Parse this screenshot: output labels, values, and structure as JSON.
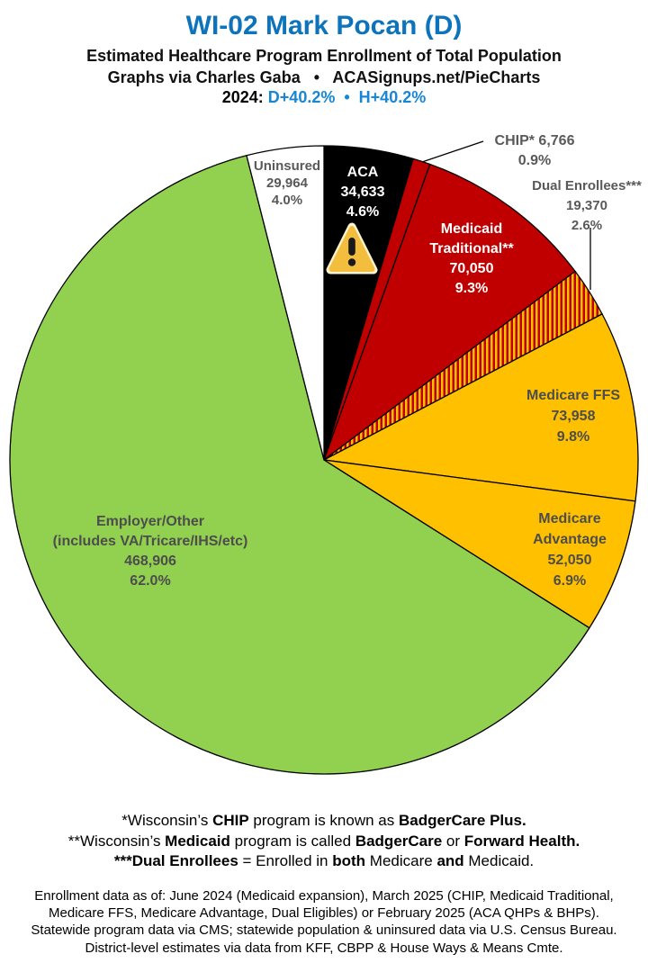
{
  "header": {
    "title": "WI-02 Mark Pocan (D)",
    "subtitle": "Estimated Healthcare Program Enrollment of Total Population",
    "credit": "Graphs via Charles Gaba   •   ACASignups.net/PieCharts",
    "partisan_segments": [
      {
        "t": "2024: ",
        "c": "#000000"
      },
      {
        "t": "D+40.2%",
        "c": "#1787D5"
      },
      {
        "t": "  •  ",
        "c": "#1787D5"
      },
      {
        "t": "H+40.2%",
        "c": "#1787D5"
      }
    ]
  },
  "colors": {
    "title_blue": "#0D74BC",
    "stat_blue": "#1787D5",
    "red": "#C00000",
    "gold": "#FFC000",
    "green": "#92D050",
    "black": "#000000",
    "white": "#FFFFFF",
    "gray_label": "#595959",
    "dark_gray_label": "#4D4D4D",
    "warning_triangle": "#F3BE3E"
  },
  "chart_data": {
    "type": "pie",
    "title": "Estimated Healthcare Program Enrollment of Total Population",
    "start_angle": "12 o'clock, clockwise",
    "slices": [
      {
        "key": "aca",
        "name": "ACA",
        "value": 34633,
        "display": "34,633",
        "pct": "4.6%",
        "color": "#000000",
        "icon": "warning-triangle-icon"
      },
      {
        "key": "chip",
        "name": "CHIP*",
        "value": 6766,
        "display": "6,766",
        "pct": "0.9%",
        "color": "#C00000"
      },
      {
        "key": "medicaid",
        "name": "Medicaid Traditional**",
        "value": 70050,
        "display": "70,050",
        "pct": "9.3%",
        "color": "#C00000"
      },
      {
        "key": "dual",
        "name": "Dual Enrollees***",
        "value": 19370,
        "display": "19,370",
        "pct": "2.6%",
        "color": "#C00000",
        "hatch": true,
        "hatch_color": "#FFC000"
      },
      {
        "key": "ffs",
        "name": "Medicare FFS",
        "value": 73958,
        "display": "73,958",
        "pct": "9.8%",
        "color": "#FFC000"
      },
      {
        "key": "advantage",
        "name": "Medicare Advantage",
        "value": 52050,
        "display": "52,050",
        "pct": "6.9%",
        "color": "#FFC000"
      },
      {
        "key": "employer",
        "name": "Employer/Other (includes VA/Tricare/IHS/etc)",
        "value": 468906,
        "display": "468,906",
        "pct": "62.0%",
        "color": "#92D050"
      },
      {
        "key": "uninsured",
        "name": "Uninsured",
        "value": 29964,
        "display": "29,964",
        "pct": "4.0%",
        "color": "#FFFFFF"
      }
    ],
    "labels": {
      "uninsured": {
        "lines": [
          "Uninsured",
          "29,964",
          "4.0%"
        ],
        "color": "#595959"
      },
      "aca": {
        "lines": [
          "ACA",
          "34,633",
          "4.6%"
        ],
        "color": "#FFFFFF"
      },
      "chip": {
        "lines": [
          "CHIP* 6,766",
          "0.9%"
        ],
        "color": "#595959"
      },
      "dual": {
        "lines": [
          "Dual Enrollees***",
          "19,370",
          "2.6%"
        ],
        "color": "#595959"
      },
      "medicaid": {
        "lines": [
          "Medicaid",
          "Traditional**",
          "70,050",
          "9.3%"
        ],
        "color": "#FFFFFF"
      },
      "ffs": {
        "lines": [
          "Medicare FFS",
          "73,958",
          "9.8%"
        ],
        "color": "#4D4D4D"
      },
      "advantage": {
        "lines": [
          "Medicare",
          "Advantage",
          "52,050",
          "6.9%"
        ],
        "color": "#4D4D4D"
      },
      "employer": {
        "lines": [
          "Employer/Other",
          "(includes VA/Tricare/IHS/etc)",
          "468,906",
          "62.0%"
        ],
        "color": "#4D4D4D"
      }
    },
    "legend_position": "labels on/beside slices"
  },
  "footnotes": {
    "lines": [
      [
        {
          "t": "*Wisconsin’s "
        },
        {
          "t": "CHIP",
          "b": 1
        },
        {
          "t": " program is known as "
        },
        {
          "t": "BadgerCare Plus.",
          "b": 1
        }
      ],
      [
        {
          "t": "**Wisconsin’s "
        },
        {
          "t": "Medicaid",
          "b": 1
        },
        {
          "t": " program is called "
        },
        {
          "t": "BadgerCare",
          "b": 1
        },
        {
          "t": " or "
        },
        {
          "t": "Forward Health.",
          "b": 1
        }
      ],
      [
        {
          "t": "***Dual Enrollees",
          "b": 1
        },
        {
          "t": " = Enrolled in "
        },
        {
          "t": "both",
          "b": 1
        },
        {
          "t": " Medicare "
        },
        {
          "t": "and",
          "b": 1
        },
        {
          "t": " Medicaid."
        }
      ]
    ]
  },
  "sources": {
    "lines": [
      "Enrollment data as of: June 2024 (Medicaid expansion), March 2025 (CHIP, Medicaid Traditional,",
      "Medicare FFS, Medicare Advantage, Dual Eligibles) or February 2025 (ACA QHPs & BHPs).",
      "Statewide program data via CMS; statewide population & uninsured data via U.S. Census Bureau.",
      "District-level estimates via data from KFF, CBPP & House Ways & Means Cmte."
    ]
  }
}
